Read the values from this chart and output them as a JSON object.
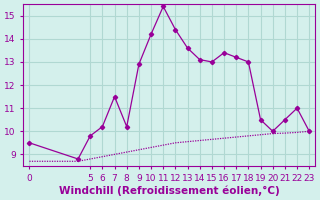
{
  "xlabel": "Windchill (Refroidissement éolien,°C)",
  "background_color": "#d4f0ec",
  "grid_color": "#b0d8d2",
  "line_color": "#990099",
  "x_hours": [
    0,
    4,
    5,
    6,
    7,
    8,
    9,
    10,
    11,
    12,
    13,
    14,
    15,
    16,
    17,
    18,
    19,
    20,
    21,
    22,
    23
  ],
  "y_windchill": [
    9.5,
    8.8,
    9.8,
    10.2,
    11.5,
    10.2,
    12.9,
    14.2,
    15.4,
    14.4,
    13.6,
    13.1,
    13.0,
    13.4,
    13.2,
    13.0,
    10.5,
    10.0,
    10.5,
    11.0,
    10.0
  ],
  "x_temp": [
    0,
    4,
    5,
    6,
    7,
    8,
    9,
    10,
    11,
    12,
    13,
    14,
    15,
    16,
    17,
    18,
    19,
    20,
    21,
    22,
    23
  ],
  "y_temp": [
    8.7,
    8.7,
    8.8,
    8.9,
    9.0,
    9.1,
    9.2,
    9.3,
    9.4,
    9.5,
    9.55,
    9.6,
    9.65,
    9.7,
    9.75,
    9.8,
    9.85,
    9.9,
    9.92,
    9.95,
    10.0
  ],
  "ylim": [
    8.5,
    15.5
  ],
  "yticks": [
    9,
    10,
    11,
    12,
    13,
    14,
    15
  ],
  "xticks": [
    0,
    5,
    6,
    7,
    8,
    9,
    10,
    11,
    12,
    13,
    14,
    15,
    16,
    17,
    18,
    19,
    20,
    21,
    22,
    23
  ],
  "tick_label_fontsize": 6.5,
  "xlabel_fontsize": 7.5
}
